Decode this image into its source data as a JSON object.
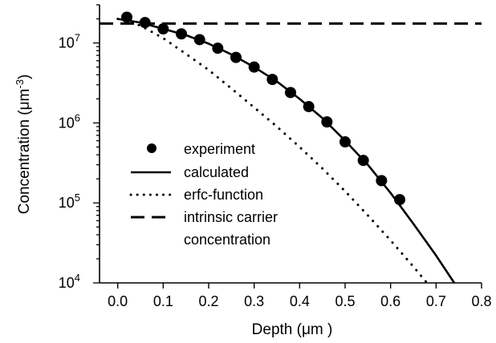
{
  "chart_data": {
    "type": "scatter",
    "title": "",
    "xlabel": "Depth (μm )",
    "ylabel_main": "Concentration (",
    "ylabel_unit": "μm",
    "ylabel_exp": "-3",
    "ylabel_close": ")",
    "x_scale": "linear",
    "y_scale": "log",
    "xlim": [
      -0.04,
      0.8
    ],
    "ylim": [
      10000,
      30000000
    ],
    "x_ticks": [
      0.0,
      0.1,
      0.2,
      0.3,
      0.4,
      0.5,
      0.6,
      0.7,
      0.8
    ],
    "x_tick_labels": [
      "0.0",
      "0.1",
      "0.2",
      "0.3",
      "0.4",
      "0.5",
      "0.6",
      "0.7",
      "0.8"
    ],
    "y_ticks": [
      {
        "value": 10000,
        "base": "10",
        "exp": "4"
      },
      {
        "value": 100000,
        "base": "10",
        "exp": "5"
      },
      {
        "value": 1000000,
        "base": "10",
        "exp": "6"
      },
      {
        "value": 10000000,
        "base": "10",
        "exp": "7"
      }
    ],
    "grid": false,
    "legend_position": "center-left",
    "series": [
      {
        "name": "experiment",
        "style": "markers",
        "x": [
          0.02,
          0.06,
          0.1,
          0.14,
          0.18,
          0.22,
          0.26,
          0.3,
          0.34,
          0.38,
          0.42,
          0.46,
          0.5,
          0.54,
          0.58,
          0.62
        ],
        "y": [
          21000000,
          18000000,
          15000000,
          13000000,
          11000000,
          8600000,
          6600000,
          5000000,
          3500000,
          2400000,
          1600000,
          1030000,
          580000,
          340000,
          190000,
          110000
        ]
      },
      {
        "name": "calculated",
        "style": "solid",
        "x": [
          0.0,
          0.05,
          0.1,
          0.15,
          0.2,
          0.25,
          0.3,
          0.35,
          0.4,
          0.45,
          0.5,
          0.55,
          0.6,
          0.65,
          0.7,
          0.74
        ],
        "y": [
          20000000,
          18000000,
          15000000,
          12500000,
          9800000,
          7200000,
          5000000,
          3300000,
          2000000,
          1150000,
          600000,
          300000,
          133000,
          55000,
          22000,
          10000
        ]
      },
      {
        "name": "erfc-function",
        "style": "dotted",
        "x": [
          0.0,
          0.05,
          0.1,
          0.15,
          0.2,
          0.25,
          0.3,
          0.35,
          0.4,
          0.45,
          0.5,
          0.55,
          0.6,
          0.65,
          0.68
        ],
        "y": [
          20000000,
          16500000,
          11500000,
          7300000,
          4600000,
          2700000,
          1560000,
          900000,
          500000,
          270000,
          140000,
          70000,
          34000,
          16000,
          10000
        ]
      },
      {
        "name_line1": "intrinsic carrier",
        "name_line2": "concentration",
        "style": "dashed",
        "x": [
          -0.04,
          0.8
        ],
        "y": [
          17500000,
          17500000
        ]
      }
    ]
  }
}
